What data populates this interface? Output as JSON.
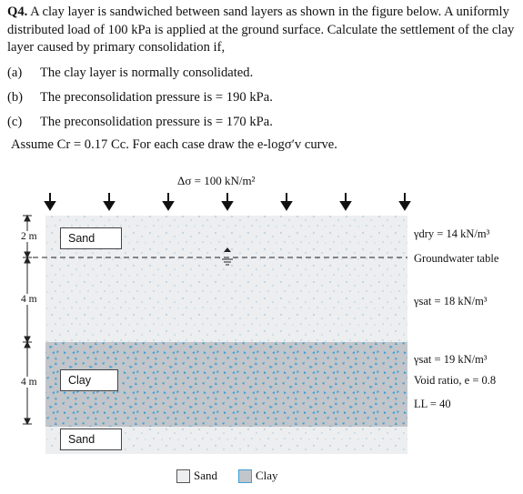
{
  "question": {
    "number": "Q4.",
    "text": "A clay layer is sandwiched between sand layers as shown in the figure below. A uniformly distributed load of 100 kPa is applied at the ground surface. Calculate the settlement of the clay layer caused by primary consolidation if,"
  },
  "cases": [
    {
      "label": "(a)",
      "text": "The clay layer is normally consolidated."
    },
    {
      "label": "(b)",
      "text": "The preconsolidation pressure is = 190 kPa."
    },
    {
      "label": "(c)",
      "text": "The preconsolidation pressure is = 170 kPa."
    }
  ],
  "assume": "Assume Cr = 0.17 Cc. For each case draw the e-logσ′v curve.",
  "figure": {
    "load_label": "Δσ = 100 kN/m²",
    "layers": {
      "top_sand": "Sand",
      "clay": "Clay",
      "bottom_sand": "Sand"
    },
    "dimensions": [
      "2 m",
      "4 m",
      "4 m"
    ],
    "properties": {
      "dry": "γdry = 14 kN/m³",
      "groundwater": "Groundwater table",
      "sat_sand": "γsat = 18 kN/m³",
      "sat_clay": "γsat = 19 kN/m³",
      "void_ratio": "Void ratio, e = 0.8",
      "ll": "LL = 40"
    },
    "legend": {
      "sand": "Sand",
      "clay": "Clay"
    },
    "colors": {
      "sand": "#eceef0",
      "clay": "#c2c5c9",
      "speckle": "#3d9fd4"
    }
  }
}
